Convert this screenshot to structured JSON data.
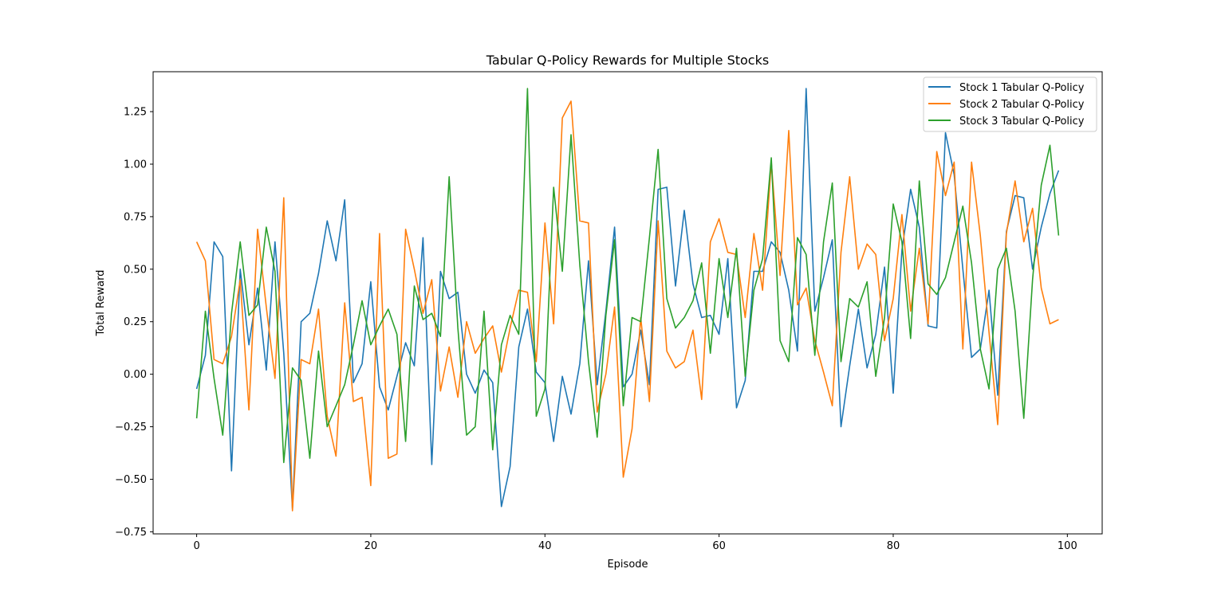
{
  "chart_data": {
    "type": "line",
    "title": "Tabular Q-Policy Rewards for Multiple Stocks",
    "xlabel": "Episode",
    "ylabel": "Total Reward",
    "xlim": [
      -5,
      104
    ],
    "ylim": [
      -0.76,
      1.44
    ],
    "xticks": [
      0,
      20,
      40,
      60,
      80,
      100
    ],
    "yticks": [
      -0.75,
      -0.5,
      -0.25,
      0.0,
      0.25,
      0.5,
      0.75,
      1.0,
      1.25
    ],
    "ytick_labels": [
      "−0.75",
      "−0.50",
      "−0.25",
      "0.00",
      "0.25",
      "0.50",
      "0.75",
      "1.00",
      "1.25"
    ],
    "grid": false,
    "legend_position": "upper right",
    "x": [
      0,
      1,
      2,
      3,
      4,
      5,
      6,
      7,
      8,
      9,
      10,
      11,
      12,
      13,
      14,
      15,
      16,
      17,
      18,
      19,
      20,
      21,
      22,
      23,
      24,
      25,
      26,
      27,
      28,
      29,
      30,
      31,
      32,
      33,
      34,
      35,
      36,
      37,
      38,
      39,
      40,
      41,
      42,
      43,
      44,
      45,
      46,
      47,
      48,
      49,
      50,
      51,
      52,
      53,
      54,
      55,
      56,
      57,
      58,
      59,
      60,
      61,
      62,
      63,
      64,
      65,
      66,
      67,
      68,
      69,
      70,
      71,
      72,
      73,
      74,
      75,
      76,
      77,
      78,
      79,
      80,
      81,
      82,
      83,
      84,
      85,
      86,
      87,
      88,
      89,
      90,
      91,
      92,
      93,
      94,
      95,
      96,
      97,
      98,
      99
    ],
    "series": [
      {
        "name": "Stock 1 Tabular Q-Policy",
        "color": "#1f77b4",
        "values": [
          -0.07,
          0.09,
          0.63,
          0.56,
          -0.46,
          0.5,
          0.14,
          0.41,
          0.02,
          0.63,
          0.1,
          -0.64,
          0.25,
          0.29,
          0.48,
          0.73,
          0.54,
          0.83,
          -0.04,
          0.05,
          0.44,
          -0.06,
          -0.17,
          -0.01,
          0.15,
          0.04,
          0.65,
          -0.43,
          0.49,
          0.36,
          0.39,
          0.0,
          -0.09,
          0.02,
          -0.04,
          -0.63,
          -0.44,
          0.13,
          0.31,
          0.01,
          -0.04,
          -0.32,
          -0.01,
          -0.19,
          0.05,
          0.54,
          -0.05,
          0.3,
          0.7,
          -0.06,
          0.0,
          0.21,
          -0.05,
          0.88,
          0.89,
          0.42,
          0.78,
          0.43,
          0.27,
          0.28,
          0.19,
          0.55,
          -0.16,
          -0.03,
          0.49,
          0.49,
          0.63,
          0.58,
          0.4,
          0.11,
          1.36,
          0.3,
          0.46,
          0.64,
          -0.25,
          0.04,
          0.31,
          0.03,
          0.19,
          0.51,
          -0.09,
          0.59,
          0.88,
          0.7,
          0.23,
          0.22,
          1.15,
          0.95,
          0.5,
          0.08,
          0.12,
          0.4,
          -0.1,
          0.68,
          0.85,
          0.84,
          0.5,
          0.7,
          0.86,
          0.97
        ]
      },
      {
        "name": "Stock 2 Tabular Q-Policy",
        "color": "#ff7f0e",
        "values": [
          0.63,
          0.54,
          0.07,
          0.05,
          0.18,
          0.45,
          -0.17,
          0.69,
          0.32,
          -0.02,
          0.84,
          -0.65,
          0.07,
          0.05,
          0.31,
          -0.2,
          -0.39,
          0.34,
          -0.13,
          -0.11,
          -0.53,
          0.67,
          -0.4,
          -0.38,
          0.69,
          0.5,
          0.29,
          0.45,
          -0.08,
          0.13,
          -0.11,
          0.25,
          0.1,
          0.17,
          0.23,
          0.01,
          0.22,
          0.4,
          0.39,
          0.06,
          0.72,
          0.24,
          1.22,
          1.3,
          0.73,
          0.72,
          -0.18,
          0.0,
          0.32,
          -0.49,
          -0.26,
          0.27,
          -0.13,
          0.73,
          0.11,
          0.03,
          0.06,
          0.21,
          -0.12,
          0.63,
          0.74,
          0.58,
          0.57,
          0.27,
          0.67,
          0.4,
          1.01,
          0.47,
          1.16,
          0.33,
          0.41,
          0.16,
          0.01,
          -0.15,
          0.58,
          0.94,
          0.5,
          0.62,
          0.57,
          0.16,
          0.36,
          0.76,
          0.3,
          0.6,
          0.24,
          1.06,
          0.85,
          1.01,
          0.12,
          1.01,
          0.66,
          0.2,
          -0.24,
          0.67,
          0.92,
          0.63,
          0.79,
          0.41,
          0.24,
          0.26
        ]
      },
      {
        "name": "Stock 3 Tabular Q-Policy",
        "color": "#2ca02c",
        "values": [
          -0.21,
          0.3,
          -0.02,
          -0.29,
          0.29,
          0.63,
          0.28,
          0.33,
          0.7,
          0.49,
          -0.42,
          0.03,
          -0.03,
          -0.4,
          0.11,
          -0.25,
          -0.15,
          -0.05,
          0.14,
          0.35,
          0.14,
          0.23,
          0.31,
          0.19,
          -0.32,
          0.42,
          0.26,
          0.29,
          0.18,
          0.94,
          0.22,
          -0.29,
          -0.25,
          0.3,
          -0.36,
          0.14,
          0.28,
          0.19,
          1.36,
          -0.2,
          -0.07,
          0.89,
          0.49,
          1.14,
          0.52,
          0.06,
          -0.3,
          0.28,
          0.64,
          -0.15,
          0.27,
          0.25,
          0.65,
          1.07,
          0.36,
          0.22,
          0.27,
          0.35,
          0.53,
          0.1,
          0.55,
          0.27,
          0.6,
          -0.01,
          0.4,
          0.55,
          1.03,
          0.16,
          0.06,
          0.65,
          0.57,
          0.09,
          0.63,
          0.91,
          0.06,
          0.36,
          0.32,
          0.44,
          -0.01,
          0.27,
          0.81,
          0.63,
          0.17,
          0.92,
          0.43,
          0.38,
          0.46,
          0.63,
          0.8,
          0.53,
          0.12,
          -0.07,
          0.5,
          0.6,
          0.3,
          -0.21,
          0.45,
          0.9,
          1.09,
          0.66
        ]
      }
    ]
  }
}
